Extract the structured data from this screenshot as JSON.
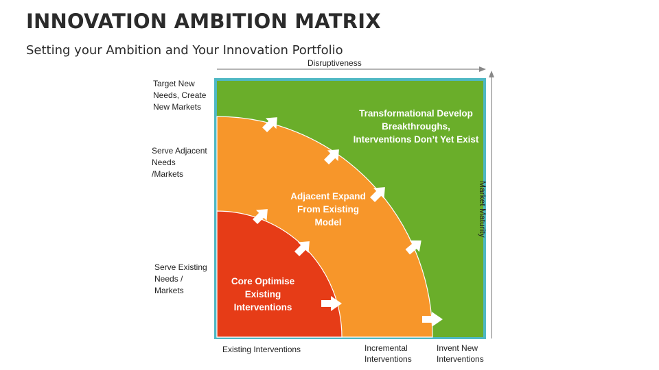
{
  "header": {
    "title": "INNOVATION AMBITION MATRIX",
    "subtitle": "Setting your Ambition and Your Innovation Portfolio"
  },
  "axes": {
    "top": "Disruptiveness",
    "right": "Market Maturity"
  },
  "rows": {
    "top": [
      "Target New",
      "Needs, Create",
      "New Markets"
    ],
    "middle": [
      "Serve Adjacent",
      "Needs",
      "/Markets"
    ],
    "bottom": [
      "Serve Existing",
      "Needs /",
      "Markets"
    ]
  },
  "columns": {
    "left": [
      "Existing Interventions"
    ],
    "middle": [
      "Incremental",
      "Interventions"
    ],
    "right": [
      "Invent New",
      "Interventions"
    ]
  },
  "zones": {
    "core": [
      "Core Optimise",
      "Existing",
      "Interventions"
    ],
    "adjacent": [
      "Adjacent Expand",
      "From Existing",
      "Model"
    ],
    "transformational": [
      "Transformational Develop",
      "Breakthroughs,",
      "Interventions Don’t Yet Exist"
    ]
  },
  "colors": {
    "frame": "#4fb8c4",
    "transformational": "#6aae2a",
    "adjacent": "#f7962a",
    "core": "#e63c17",
    "arrow": "#ffffff"
  }
}
